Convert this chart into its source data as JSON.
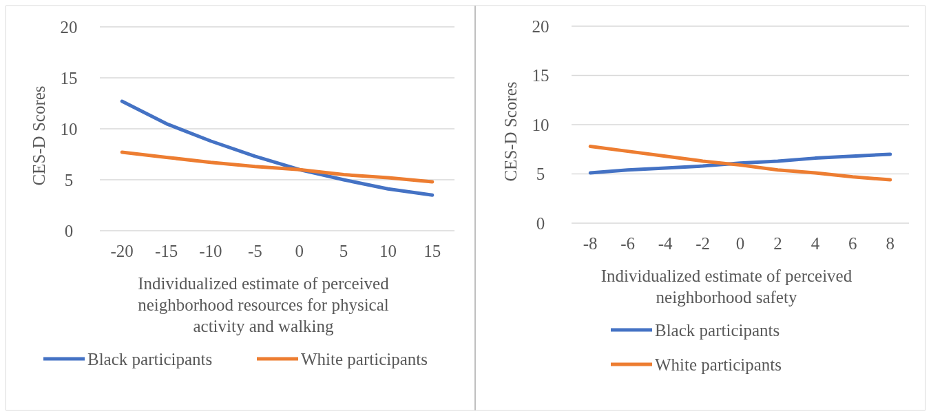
{
  "chart_data": [
    {
      "type": "line",
      "xlabel": "Individualized estimate of perceived neighborhood resources for physical activity and walking",
      "ylabel": "CES-D Scores",
      "categories": [
        "-20",
        "-15",
        "-10",
        "-5",
        "0",
        "5",
        "10",
        "15"
      ],
      "series": [
        {
          "name": "Black participants",
          "color": "#4472c4",
          "values": [
            12.7,
            10.5,
            8.8,
            7.3,
            6.0,
            5.0,
            4.1,
            3.5
          ]
        },
        {
          "name": "White participants",
          "color": "#ed7d31",
          "values": [
            7.7,
            7.2,
            6.7,
            6.3,
            6.0,
            5.5,
            5.2,
            4.8
          ]
        }
      ],
      "ylim": [
        0,
        20
      ],
      "yticks": [
        0,
        5,
        10,
        15,
        20
      ],
      "grid": "y",
      "legend": "bottom",
      "marker": "none",
      "line_style": "solid"
    },
    {
      "type": "line",
      "xlabel": "Individualized estimate of perceived neighborhood safety",
      "ylabel": "CES-D Scores",
      "categories": [
        "-8",
        "-6",
        "-4",
        "-2",
        "0",
        "2",
        "4",
        "6",
        "8"
      ],
      "series": [
        {
          "name": "Black participants",
          "color": "#4472c4",
          "values": [
            5.1,
            5.4,
            5.6,
            5.8,
            6.1,
            6.3,
            6.6,
            6.8,
            7.0
          ]
        },
        {
          "name": "White participants",
          "color": "#ed7d31",
          "values": [
            7.8,
            7.3,
            6.8,
            6.3,
            5.9,
            5.4,
            5.1,
            4.7,
            4.4
          ]
        }
      ],
      "ylim": [
        0,
        20
      ],
      "yticks": [
        0,
        5,
        10,
        15,
        20
      ],
      "grid": "y",
      "legend": "bottom",
      "marker": "none",
      "line_style": "solid"
    }
  ]
}
